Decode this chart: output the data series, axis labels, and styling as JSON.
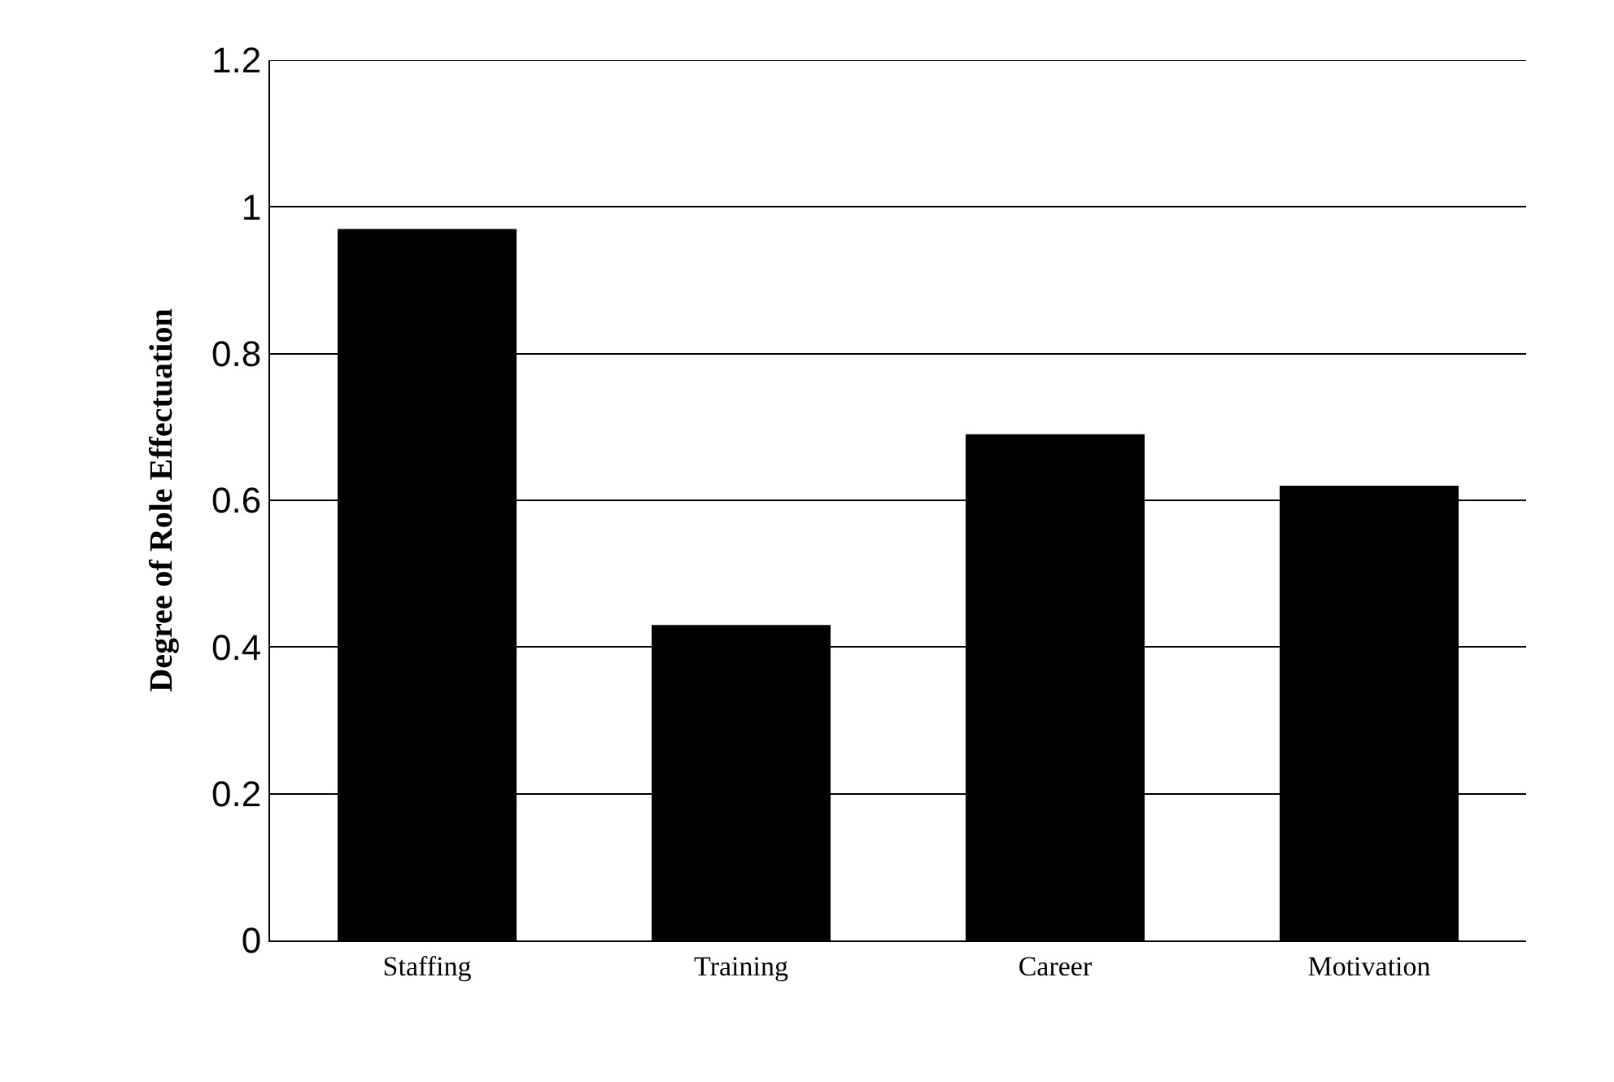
{
  "chart_data": {
    "type": "bar",
    "ylabel": "Degree of Role Effectuation",
    "categories": [
      "Staffing",
      "Training",
      "Career",
      "Motivation"
    ],
    "values": [
      0.97,
      0.43,
      0.69,
      0.62
    ],
    "color": "#000000",
    "ylim": [
      0,
      1.2
    ],
    "yticks": [
      {
        "value": 0,
        "label": "0"
      },
      0.2,
      0.4,
      0.6,
      0.8,
      {
        "value": 1,
        "label": "1"
      },
      1.2
    ],
    "grid": "y"
  }
}
